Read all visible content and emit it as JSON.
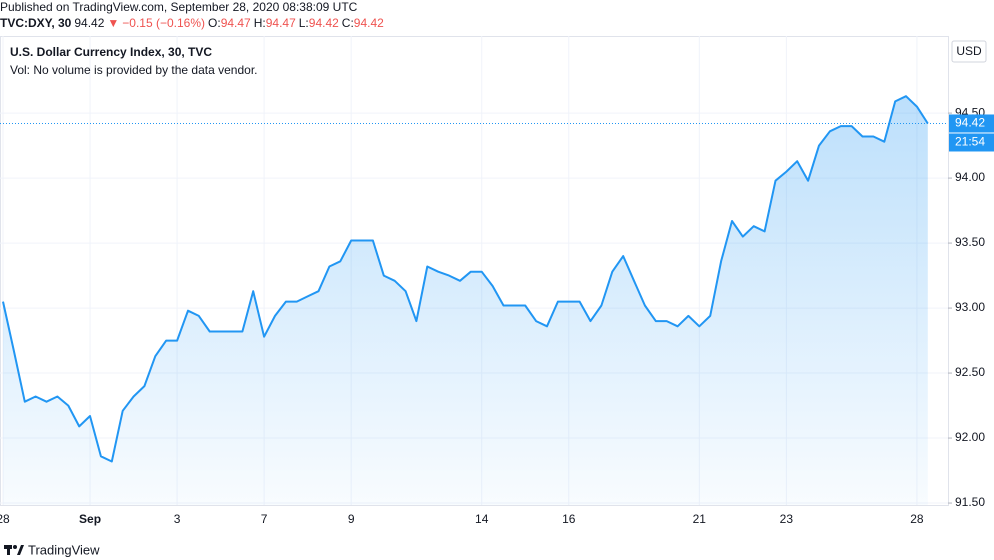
{
  "header": {
    "published": "Published on TradingView.com, September 28, 2020 08:38:09 UTC",
    "symbol": "TVC:DXY, 30",
    "last": 94.42,
    "arrow": "▼",
    "change": "−0.15 (−0.16%)",
    "ohlc": [
      {
        "label": "O:",
        "value": 94.47
      },
      {
        "label": "H:",
        "value": 94.47
      },
      {
        "label": "L:",
        "value": 94.42
      },
      {
        "label": "C:",
        "value": 94.42
      }
    ],
    "up_color": "#131722",
    "down_color": "#ef5350"
  },
  "chart_data": {
    "type": "area",
    "title": "U.S. Dollar Currency Index, 30, TVC",
    "subtitle": "Vol: No volume is provided by the data vendor.",
    "currency": "USD",
    "last_price": 94.42,
    "countdown": "21:54",
    "color": "#2196f3",
    "categories": [
      "28",
      null,
      null,
      null,
      null,
      null,
      null,
      null,
      "Sep",
      null,
      null,
      null,
      null,
      null,
      null,
      null,
      "3",
      null,
      null,
      null,
      null,
      null,
      null,
      null,
      "7",
      null,
      null,
      null,
      null,
      null,
      null,
      null,
      "9",
      null,
      null,
      null,
      null,
      null,
      null,
      null,
      null,
      null,
      null,
      null,
      "14",
      null,
      null,
      null,
      null,
      null,
      null,
      null,
      "16",
      null,
      null,
      null,
      null,
      null,
      null,
      null,
      null,
      null,
      null,
      null,
      "21",
      null,
      null,
      null,
      null,
      null,
      null,
      null,
      "23",
      null,
      null,
      null,
      null,
      null,
      null,
      null,
      null,
      null,
      null,
      null,
      "28",
      null
    ],
    "values": [
      93.05,
      92.67,
      92.28,
      92.32,
      92.28,
      92.32,
      92.25,
      92.09,
      92.17,
      91.86,
      91.82,
      92.21,
      92.32,
      92.4,
      92.63,
      92.75,
      92.75,
      92.98,
      92.94,
      92.82,
      92.82,
      92.82,
      92.82,
      93.13,
      92.78,
      92.94,
      93.05,
      93.05,
      93.09,
      93.13,
      93.32,
      93.36,
      93.52,
      93.52,
      93.52,
      93.25,
      93.21,
      93.13,
      92.9,
      93.32,
      93.28,
      93.25,
      93.21,
      93.28,
      93.28,
      93.17,
      93.02,
      93.02,
      93.02,
      92.9,
      92.86,
      93.05,
      93.05,
      93.05,
      92.9,
      93.02,
      93.28,
      93.4,
      93.21,
      93.02,
      92.9,
      92.9,
      92.86,
      92.94,
      92.86,
      92.94,
      93.36,
      93.67,
      93.55,
      93.63,
      93.59,
      93.98,
      94.05,
      94.13,
      93.98,
      94.25,
      94.36,
      94.4,
      94.4,
      94.32,
      94.32,
      94.28,
      94.59,
      94.63,
      94.55,
      94.42
    ],
    "ylim": [
      91.485,
      95.093
    ],
    "yticks": [
      {
        "value": 91.5,
        "label": "91.50"
      },
      {
        "value": 92,
        "label": "92.00"
      },
      {
        "value": 92.5,
        "label": "92.50"
      },
      {
        "value": 93,
        "label": "93.00"
      },
      {
        "value": 93.5,
        "label": "93.50"
      },
      {
        "value": 94,
        "label": "94.00"
      },
      {
        "value": 94.5,
        "label": "94.50"
      }
    ],
    "grid": true
  },
  "footer": {
    "brand": "TradingView"
  }
}
